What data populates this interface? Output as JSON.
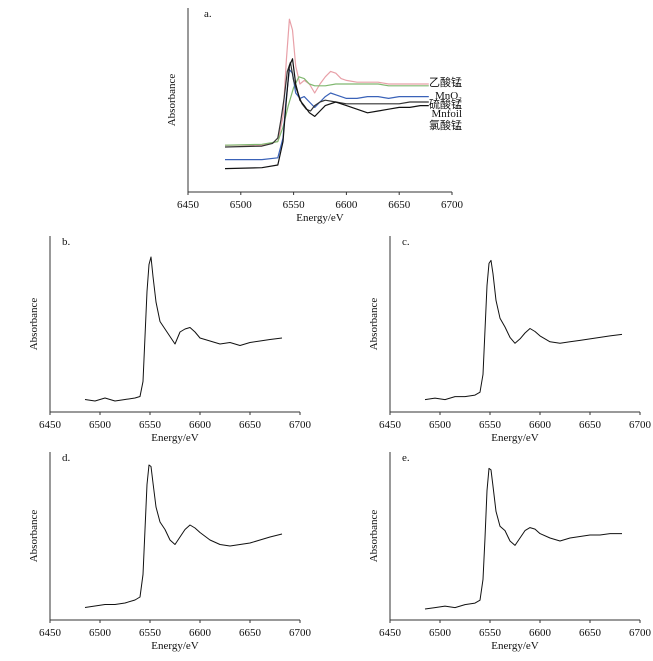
{
  "chart_data": [
    {
      "type": "line",
      "panel_label": "a.",
      "xlabel": "Energy/eV",
      "ylabel": "Absorbance",
      "xlim": [
        6450,
        6700
      ],
      "xticks": [
        6450,
        6500,
        6550,
        6600,
        6650,
        6700
      ],
      "ylim": [
        0,
        1
      ],
      "series": [
        {
          "name": "乙酸锰",
          "color": "#e8a0a8",
          "x": [
            6485,
            6520,
            6535,
            6540,
            6543,
            6546,
            6549,
            6552,
            6556,
            6560,
            6565,
            6570,
            6575,
            6580,
            6585,
            6590,
            6595,
            6600,
            6610,
            6620,
            6630,
            6640,
            6650,
            6660,
            6670,
            6678
          ],
          "y": [
            0.26,
            0.26,
            0.28,
            0.42,
            0.72,
            0.96,
            0.9,
            0.7,
            0.6,
            0.62,
            0.6,
            0.55,
            0.6,
            0.64,
            0.67,
            0.66,
            0.63,
            0.62,
            0.61,
            0.61,
            0.61,
            0.6,
            0.6,
            0.6,
            0.6,
            0.6
          ]
        },
        {
          "name": "MnO₂",
          "color": "#80b870",
          "x": [
            6485,
            6520,
            6535,
            6540,
            6545,
            6550,
            6555,
            6560,
            6565,
            6570,
            6580,
            6590,
            6600,
            6610,
            6620,
            6630,
            6640,
            6650,
            6660,
            6670,
            6678
          ],
          "y": [
            0.26,
            0.265,
            0.28,
            0.36,
            0.48,
            0.58,
            0.64,
            0.63,
            0.6,
            0.59,
            0.59,
            0.6,
            0.6,
            0.6,
            0.6,
            0.6,
            0.59,
            0.59,
            0.59,
            0.59,
            0.59
          ]
        },
        {
          "name": "硫酸锰",
          "color": "#3a62b8",
          "x": [
            6485,
            6520,
            6535,
            6540,
            6543,
            6546,
            6549,
            6552,
            6556,
            6560,
            6565,
            6570,
            6575,
            6580,
            6585,
            6590,
            6600,
            6610,
            6620,
            6630,
            6640,
            6650,
            6660,
            6670,
            6678
          ],
          "y": [
            0.18,
            0.18,
            0.19,
            0.3,
            0.52,
            0.68,
            0.66,
            0.55,
            0.52,
            0.53,
            0.5,
            0.47,
            0.5,
            0.53,
            0.55,
            0.54,
            0.52,
            0.52,
            0.53,
            0.53,
            0.52,
            0.53,
            0.53,
            0.53,
            0.53
          ]
        },
        {
          "name": "Mnfoil",
          "color": "#333333",
          "x": [
            6485,
            6520,
            6530,
            6535,
            6538,
            6541,
            6544,
            6547,
            6550,
            6554,
            6558,
            6562,
            6566,
            6570,
            6575,
            6580,
            6590,
            6600,
            6610,
            6620,
            6630,
            6640,
            6650,
            6660,
            6670,
            6678
          ],
          "y": [
            0.25,
            0.255,
            0.27,
            0.3,
            0.4,
            0.52,
            0.67,
            0.72,
            0.62,
            0.55,
            0.49,
            0.46,
            0.45,
            0.48,
            0.5,
            0.51,
            0.5,
            0.49,
            0.49,
            0.49,
            0.49,
            0.49,
            0.49,
            0.5,
            0.5,
            0.5
          ]
        },
        {
          "name": "氯酸锰",
          "color": "#111111",
          "x": [
            6485,
            6520,
            6535,
            6540,
            6543,
            6546,
            6549,
            6552,
            6556,
            6560,
            6565,
            6570,
            6575,
            6580,
            6590,
            6600,
            6610,
            6620,
            6630,
            6640,
            6650,
            6660,
            6670,
            6678
          ],
          "y": [
            0.13,
            0.135,
            0.15,
            0.28,
            0.5,
            0.7,
            0.74,
            0.6,
            0.51,
            0.48,
            0.44,
            0.42,
            0.45,
            0.48,
            0.5,
            0.48,
            0.46,
            0.44,
            0.45,
            0.46,
            0.47,
            0.47,
            0.48,
            0.48
          ]
        }
      ]
    },
    {
      "type": "line",
      "panel_label": "b.",
      "xlabel": "Energy/eV",
      "ylabel": "Absorbance",
      "xlim": [
        6450,
        6700
      ],
      "xticks": [
        6450,
        6500,
        6550,
        6600,
        6650,
        6700
      ],
      "ylim": [
        0,
        1
      ],
      "series": [
        {
          "name": "b",
          "color": "#111111",
          "x": [
            6485,
            6495,
            6505,
            6515,
            6525,
            6535,
            6540,
            6543,
            6545,
            6547,
            6549,
            6551,
            6553,
            6556,
            6560,
            6565,
            6570,
            6575,
            6580,
            6585,
            6590,
            6595,
            6600,
            6610,
            6620,
            6630,
            6640,
            6650,
            6660,
            6670,
            6682
          ],
          "y": [
            0.03,
            0.02,
            0.04,
            0.02,
            0.03,
            0.04,
            0.05,
            0.15,
            0.45,
            0.75,
            0.93,
            0.98,
            0.85,
            0.68,
            0.55,
            0.5,
            0.45,
            0.4,
            0.48,
            0.5,
            0.51,
            0.48,
            0.44,
            0.42,
            0.4,
            0.41,
            0.39,
            0.41,
            0.42,
            0.43,
            0.44
          ]
        }
      ]
    },
    {
      "type": "line",
      "panel_label": "c.",
      "xlabel": "Energy/eV",
      "ylabel": "Absorbance",
      "xlim": [
        6450,
        6700
      ],
      "xticks": [
        6450,
        6500,
        6550,
        6600,
        6650,
        6700
      ],
      "ylim": [
        0,
        1
      ],
      "series": [
        {
          "name": "c",
          "color": "#111111",
          "x": [
            6485,
            6495,
            6505,
            6515,
            6525,
            6535,
            6540,
            6543,
            6545,
            6547,
            6549,
            6551,
            6553,
            6556,
            6560,
            6565,
            6570,
            6575,
            6580,
            6585,
            6590,
            6595,
            6600,
            6610,
            6620,
            6630,
            6640,
            6650,
            6660,
            6670,
            6682
          ],
          "y": [
            0.03,
            0.04,
            0.03,
            0.05,
            0.05,
            0.06,
            0.08,
            0.2,
            0.5,
            0.8,
            0.95,
            0.97,
            0.88,
            0.7,
            0.58,
            0.52,
            0.45,
            0.41,
            0.44,
            0.48,
            0.51,
            0.49,
            0.46,
            0.42,
            0.41,
            0.42,
            0.43,
            0.44,
            0.45,
            0.46,
            0.47
          ]
        }
      ]
    },
    {
      "type": "line",
      "panel_label": "d.",
      "xlabel": "Energy/eV",
      "ylabel": "Absorbance",
      "xlim": [
        6450,
        6700
      ],
      "xticks": [
        6450,
        6500,
        6550,
        6600,
        6650,
        6700
      ],
      "ylim": [
        0,
        1
      ],
      "series": [
        {
          "name": "d",
          "color": "#111111",
          "x": [
            6485,
            6495,
            6505,
            6515,
            6525,
            6535,
            6540,
            6543,
            6545,
            6547,
            6549,
            6551,
            6553,
            6556,
            6560,
            6565,
            6570,
            6575,
            6580,
            6585,
            6590,
            6595,
            6600,
            6610,
            6620,
            6630,
            6640,
            6650,
            6660,
            6670,
            6682
          ],
          "y": [
            0.03,
            0.04,
            0.05,
            0.05,
            0.06,
            0.08,
            0.1,
            0.25,
            0.55,
            0.85,
            0.98,
            0.97,
            0.86,
            0.7,
            0.6,
            0.55,
            0.48,
            0.45,
            0.5,
            0.55,
            0.58,
            0.56,
            0.53,
            0.48,
            0.45,
            0.44,
            0.45,
            0.46,
            0.48,
            0.5,
            0.52
          ]
        }
      ]
    },
    {
      "type": "line",
      "panel_label": "e.",
      "xlabel": "Energy/eV",
      "ylabel": "Absorbance",
      "xlim": [
        6450,
        6700
      ],
      "xticks": [
        6450,
        6500,
        6550,
        6600,
        6650,
        6700
      ],
      "ylim": [
        0,
        1
      ],
      "series": [
        {
          "name": "e",
          "color": "#111111",
          "x": [
            6485,
            6495,
            6505,
            6515,
            6525,
            6535,
            6540,
            6543,
            6545,
            6547,
            6549,
            6551,
            6553,
            6556,
            6560,
            6565,
            6570,
            6575,
            6580,
            6585,
            6590,
            6595,
            6600,
            6610,
            6620,
            6630,
            6640,
            6650,
            6660,
            6670,
            6682
          ],
          "y": [
            0.02,
            0.03,
            0.04,
            0.03,
            0.05,
            0.06,
            0.08,
            0.22,
            0.5,
            0.82,
            0.97,
            0.96,
            0.85,
            0.68,
            0.58,
            0.55,
            0.48,
            0.45,
            0.5,
            0.55,
            0.57,
            0.56,
            0.53,
            0.5,
            0.48,
            0.5,
            0.51,
            0.52,
            0.52,
            0.53,
            0.53
          ]
        }
      ]
    }
  ]
}
